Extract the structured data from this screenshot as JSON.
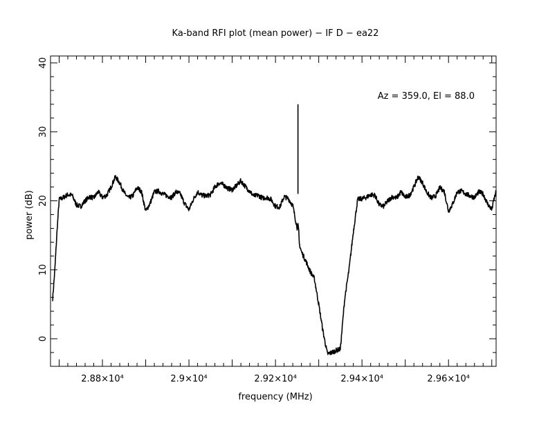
{
  "chart_data": {
    "type": "line",
    "title": "Ka-band RFI plot (mean power) − IF D − ea22",
    "xlabel": "frequency (MHz)",
    "ylabel": "power (dB)",
    "annotation": "Az = 359.0, El = 88.0",
    "xlim": [
      28680,
      29710
    ],
    "ylim": [
      -4,
      41
    ],
    "x_ticks": [
      {
        "value": 28800,
        "label": "2.88×10⁴"
      },
      {
        "value": 29000,
        "label": "2.9×10⁴"
      },
      {
        "value": 29200,
        "label": "2.92×10⁴"
      },
      {
        "value": 29400,
        "label": "2.94×10⁴"
      },
      {
        "value": 29600,
        "label": "2.96×10⁴"
      }
    ],
    "y_ticks": [
      0,
      10,
      20,
      30,
      40
    ],
    "grid": false,
    "color": "#000000",
    "series": [
      {
        "x": [
          28685,
          28690,
          28695,
          28700,
          28705,
          28710,
          28720,
          28730,
          28740,
          28750,
          28760,
          28770,
          28780,
          28790,
          28800,
          28810,
          28820,
          28830,
          28840,
          28850,
          28860,
          28870,
          28880,
          28890,
          28900,
          28910,
          28920,
          28930,
          28940,
          28950,
          28960,
          28970,
          28980,
          28990,
          29000,
          29010,
          29020,
          29030,
          29040,
          29050,
          29060,
          29070,
          29080,
          29090,
          29100,
          29110,
          29120,
          29130,
          29140,
          29150,
          29160,
          29170,
          29180,
          29190,
          29200,
          29210,
          29220,
          29230,
          29240,
          29250,
          29252,
          29253,
          29254,
          29255,
          29260,
          29270,
          29280,
          29290,
          29300,
          29310,
          29320,
          29330,
          29340,
          29350,
          29360,
          29370,
          29380,
          29390,
          29400,
          29410,
          29420,
          29430,
          29440,
          29450,
          29460,
          29470,
          29480,
          29490,
          29500,
          29510,
          29520,
          29530,
          29540,
          29550,
          29560,
          29570,
          29580,
          29590,
          29600,
          29610,
          29620,
          29630,
          29640,
          29650,
          29660,
          29670,
          29680,
          29690,
          29700,
          29705,
          29710
        ],
        "y": [
          5.8,
          10,
          15.5,
          20.2,
          20.3,
          20.5,
          20.9,
          20.8,
          19.4,
          19.2,
          20.0,
          20.6,
          20.4,
          21.3,
          20.5,
          20.8,
          22.0,
          23.5,
          22.6,
          21.2,
          20.4,
          20.7,
          21.9,
          21.4,
          18.5,
          19.6,
          21.3,
          21.4,
          21.0,
          20.7,
          20.5,
          21.3,
          21.0,
          19.6,
          18.7,
          20.2,
          21.3,
          20.8,
          20.7,
          20.9,
          22.0,
          22.6,
          22.3,
          21.8,
          21.6,
          22.2,
          22.9,
          22.1,
          21.4,
          20.7,
          20.8,
          20.4,
          20.5,
          20.2,
          19.2,
          19.1,
          20.6,
          20.3,
          19.3,
          16.1,
          16.4,
          16.0,
          15.3,
          13.8,
          12.6,
          11.3,
          9.8,
          8.7,
          5.0,
          1.0,
          -2.2,
          -2.0,
          -1.7,
          -1.5,
          5.8,
          10,
          15.5,
          20.2,
          20.3,
          20.5,
          20.9,
          20.8,
          19.4,
          19.2,
          20.0,
          20.6,
          20.4,
          21.3,
          20.5,
          20.8,
          22.0,
          23.5,
          22.6,
          21.2,
          20.4,
          20.7,
          21.9,
          21.4,
          18.5,
          19.6,
          21.3,
          21.4,
          21.0,
          20.7,
          20.5,
          21.3,
          21.0,
          19.6,
          18.7,
          20.2,
          21.3
        ]
      }
    ],
    "spike": {
      "x": 29252,
      "y_top": 34,
      "y_base": 21
    }
  }
}
